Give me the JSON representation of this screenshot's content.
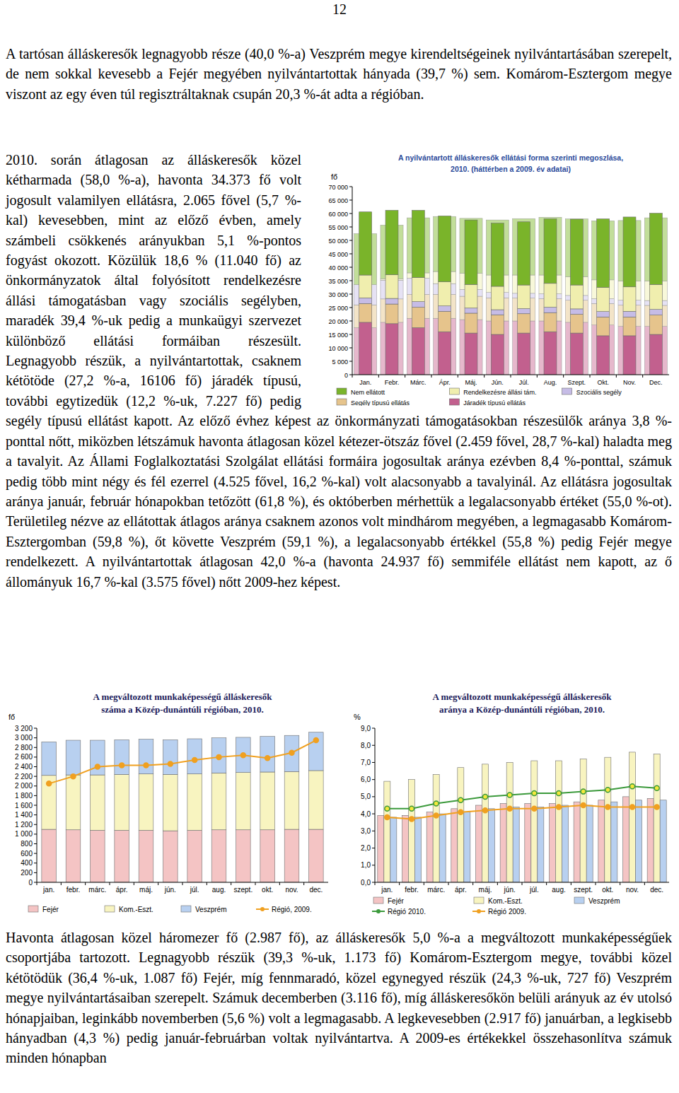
{
  "page_number": "12",
  "paragraphs": [
    "A tartósan álláskeresők legnagyobb része (40,0 %-a) Veszprém megye kirendeltségeinek nyilvántartásában szerepelt, de nem sokkal kevesebb a Fejér megyében nyilvántartottak hányada (39,7 %) sem. Komárom-Esztergom megye viszont az egy éven túl regisztráltaknak csupán 20,3 %-át adta a régióban.",
    "2010. során átlagosan az álláskeresők közel kétharmada (58,0 %-a), havonta 34.373 fő volt jogosult valamilyen ellátásra, 2.065 fővel (5,7 %-kal) kevesebben, mint az előző évben, amely számbeli csökkenés arányukban 5,1 %-pontos fogyást okozott. Közülük 18,6 % (11.040 fő) az önkormányzatok által folyósított rendelkezésre állási támogatásban vagy szociális segélyben, maradék 39,4 %-uk pedig a munkaügyi szervezet különböző ellátási formáiban részesült. Legnagyobb részük, a nyilvántartottak, csaknem kétötöde (27,2 %-a, 16106 fő) járadék típusú, további egytizedük (12,2 %-uk, 7.227 fő) pedig segély típusú ellátást kapott. Az előző évhez képest az önkormányzati támogatásokban részesülők aránya 3,8 %-ponttal nőtt, miközben létszámuk havonta átlagosan közel kétezer-ötszáz fővel (2.459 fővel, 28,7 %-kal) haladta meg a tavalyit. Az Állami Foglalkoztatási Szolgálat ellátási formáira jogosultak aránya ezévben 8,4 %-ponttal, számuk pedig több mint négy és fél ezerrel (4.525 fővel, 16,2 %-kal) volt alacsonyabb a tavalyinál. Az ellátásra jogosultak aránya január, február hónapokban tetőzött (61,8 %), és októberben mérhettük a legalacsonyabb értéket (55,0 %-ot). Területileg nézve az ellátottak átlagos aránya csaknem azonos volt mindhárom megyében, a legmagasabb Komárom-Esztergomban (59,8 %), őt követte Veszprém (59,1 %), a legalacsonyabb értékkel (55,8 %) pedig Fejér megye rendelkezett. A nyilvántartottak átlagosan 42,0 %-a (havonta 24.937 fő) semmiféle ellátást nem kapott, az ő állományuk 16,7 %-kal (3.575 fővel) nőtt 2009-hez képest.",
    "Havonta átlagosan közel háromezer fő (2.987 fő), az álláskeresők 5,0 %-a a megváltozott munkaképességűek csoportjába tartozott. Legnagyobb részük (39,3 %-uk, 1.173 fő) Komárom-Esztergom megye, további közel kétötödük (36,4 %-uk, 1.087 fő) Fejér, míg fennmaradó, közel egynegyed részük (24,3 %-uk, 727 fő) Veszprém megye nyilvántartásaiban szerepelt. Számuk decemberben (3.116 fő), míg álláskeresőkön belüli arányuk az év utolsó hónapjaiban, leginkább novemberben (5,6 %) volt a legmagasabb. A legkevesebben (2.917 fő) januárban, a legkisebb hányadban (4,3 %) pedig január-februárban voltak nyilvántartva. A 2009-es értékekkel összehasonlítva számuk minden hónapban"
  ],
  "chart_data": [
    {
      "type": "bar",
      "title": "A nyilvántartott álláskeresők ellátási forma szerinti megoszlása,",
      "subtitle": "2010. (háttérben a 2009. év adatai)",
      "ylabel": "fő",
      "categories": [
        "Jan.",
        "Febr.",
        "Márc.",
        "Ápr.",
        "Máj.",
        "Jún.",
        "Júl.",
        "Aug.",
        "Szept.",
        "Okt.",
        "Nov.",
        "Dec."
      ],
      "series": [
        {
          "name": "Járadék típusú ellátás",
          "color": "#c2608e",
          "values": [
            19500,
            19000,
            17500,
            16000,
            15500,
            15000,
            15500,
            16000,
            15500,
            14500,
            14500,
            15000
          ]
        },
        {
          "name": "Segély típusú ellátás",
          "color": "#e6c48c",
          "values": [
            7000,
            7300,
            7600,
            7600,
            7400,
            7300,
            7200,
            7100,
            7000,
            7000,
            7000,
            7200
          ]
        },
        {
          "name": "Szociális segély",
          "color": "#c6bce6",
          "values": [
            2100,
            2100,
            2100,
            2000,
            1900,
            1900,
            1900,
            2000,
            2000,
            2000,
            2100,
            2100
          ]
        },
        {
          "name": "Rendelkezésre állási tám.",
          "color": "#f0eeae",
          "values": [
            8500,
            8800,
            9000,
            9000,
            8800,
            8700,
            8800,
            8900,
            8900,
            9000,
            9100,
            9300
          ]
        },
        {
          "name": "Nem ellátott",
          "color": "#7ab42a",
          "values": [
            23500,
            24000,
            25000,
            24500,
            24000,
            23500,
            23500,
            24000,
            24500,
            25500,
            26000,
            26500
          ]
        }
      ],
      "background_series": [
        {
          "color": "#e6b8cc",
          "values": [
            17500,
            19500,
            21000,
            21000,
            20500,
            20000,
            20000,
            20000,
            19500,
            18500,
            18000,
            18000
          ]
        },
        {
          "color": "#f3e4c8",
          "values": [
            8500,
            8700,
            8900,
            8900,
            8700,
            8600,
            8500,
            8300,
            8200,
            8000,
            7900,
            7800
          ]
        },
        {
          "color": "#e6e2f4",
          "values": [
            7500,
            7000,
            6000,
            4000,
            2500,
            2000,
            1800,
            1800,
            1800,
            1800,
            1800,
            1800
          ]
        },
        {
          "color": "#f8f8da",
          "values": [
            0,
            500,
            2000,
            4500,
            6000,
            6500,
            6800,
            7000,
            7000,
            7000,
            7200,
            7300
          ]
        },
        {
          "color": "#c2de9a",
          "values": [
            19000,
            20000,
            20500,
            20500,
            20500,
            20500,
            21000,
            21500,
            21500,
            22000,
            22500,
            23500
          ]
        }
      ],
      "stacked": true,
      "grid": false,
      "legend": "bottom",
      "ylim": [
        0,
        70000
      ],
      "yticks": [
        0,
        {
          "value": 5000,
          "label": "5 000"
        },
        {
          "value": 10000,
          "label": "10 000"
        },
        {
          "value": 15000,
          "label": "15 000"
        },
        {
          "value": 20000,
          "label": "20 000"
        },
        {
          "value": 25000,
          "label": "25 000"
        },
        {
          "value": 30000,
          "label": "30 000"
        },
        {
          "value": 35000,
          "label": "35 000"
        },
        {
          "value": 40000,
          "label": "40 000"
        },
        {
          "value": 45000,
          "label": "45 000"
        },
        {
          "value": 50000,
          "label": "50 000"
        },
        {
          "value": 55000,
          "label": "55 000"
        },
        {
          "value": 60000,
          "label": "60 000"
        },
        {
          "value": 65000,
          "label": "65 000"
        },
        {
          "value": 70000,
          "label": "70 000"
        }
      ]
    },
    {
      "type": "bar",
      "title": "A megváltozott munkaképességű álláskeresők",
      "subtitle": "száma a Közép-dunántúli régióban, 2010.",
      "ylabel": "fő",
      "categories": [
        "jan.",
        "febr.",
        "márc.",
        "ápr.",
        "máj.",
        "jún.",
        "júl.",
        "aug.",
        "szept.",
        "okt.",
        "nov.",
        "dec."
      ],
      "series": [
        {
          "name": "Fejér",
          "color": "#f4c4c4",
          "values": [
            1100,
            1090,
            1080,
            1080,
            1080,
            1070,
            1080,
            1090,
            1090,
            1090,
            1100,
            1100
          ]
        },
        {
          "name": "Kom.-Eszt.",
          "color": "#f8f4c0",
          "values": [
            1120,
            1140,
            1150,
            1160,
            1170,
            1170,
            1170,
            1180,
            1190,
            1200,
            1200,
            1220
          ]
        },
        {
          "name": "Veszprém",
          "color": "#b8d0f0",
          "values": [
            697,
            720,
            720,
            720,
            720,
            720,
            730,
            730,
            730,
            740,
            750,
            796
          ]
        },
        {
          "name": "Régió, 2009.",
          "color": "#f0a020",
          "type": "line",
          "marker": "circle",
          "values": [
            2050,
            2200,
            2400,
            2430,
            2430,
            2460,
            2540,
            2600,
            2640,
            2580,
            2690,
            2950
          ]
        }
      ],
      "stacked": true,
      "grid": false,
      "legend": "bottom",
      "ylim": [
        0,
        3200
      ],
      "yticks": [
        0,
        200,
        400,
        600,
        800,
        {
          "value": 1000,
          "label": "1 000"
        },
        {
          "value": 1200,
          "label": "1 200"
        },
        {
          "value": 1400,
          "label": "1 400"
        },
        {
          "value": 1600,
          "label": "1 600"
        },
        {
          "value": 1800,
          "label": "1 800"
        },
        {
          "value": 2000,
          "label": "2 000"
        },
        {
          "value": 2200,
          "label": "2 200"
        },
        {
          "value": 2400,
          "label": "2 400"
        },
        {
          "value": 2600,
          "label": "2 600"
        },
        {
          "value": 2800,
          "label": "2 800"
        },
        {
          "value": 3000,
          "label": "3 000"
        },
        {
          "value": 3200,
          "label": "3 200"
        }
      ]
    },
    {
      "type": "bar",
      "title": "A megváltozott munkaképességű álláskeresők",
      "subtitle": "aránya a Közép-dunántúli régióban, 2010.",
      "ylabel": "%",
      "categories": [
        "jan.",
        "febr.",
        "márc.",
        "ápr.",
        "máj.",
        "jún.",
        "júl.",
        "aug.",
        "szept.",
        "okt.",
        "nov.",
        "dec."
      ],
      "series": [
        {
          "name": "Fejér",
          "color": "#f4c4c4",
          "values": [
            3.9,
            3.9,
            4.1,
            4.3,
            4.5,
            4.6,
            4.6,
            4.6,
            4.7,
            4.8,
            5.0,
            4.9
          ]
        },
        {
          "name": "Kom.-Eszt.",
          "color": "#f8f4c0",
          "values": [
            5.9,
            6.0,
            6.3,
            6.7,
            6.9,
            7.0,
            7.1,
            7.1,
            7.2,
            7.3,
            7.6,
            7.5
          ]
        },
        {
          "name": "Veszprém",
          "color": "#b8d0f0",
          "values": [
            3.8,
            3.8,
            4.0,
            4.1,
            4.3,
            4.4,
            4.4,
            4.5,
            4.5,
            4.7,
            4.8,
            4.8
          ]
        },
        {
          "name": "Régió 2010.",
          "color": "#3c9a3c",
          "type": "line",
          "marker": "circle",
          "values": [
            4.3,
            4.3,
            4.6,
            4.8,
            5.0,
            5.1,
            5.2,
            5.2,
            5.3,
            5.4,
            5.6,
            5.5
          ]
        },
        {
          "name": "Régió 2009.",
          "color": "#f0a020",
          "type": "line",
          "marker": "circle",
          "values": [
            3.8,
            3.7,
            3.9,
            4.1,
            4.2,
            4.3,
            4.3,
            4.4,
            4.5,
            4.4,
            4.4,
            4.4
          ]
        }
      ],
      "stacked": false,
      "grid": false,
      "legend": "bottom",
      "ylim": [
        0,
        9
      ],
      "yticks": [
        {
          "value": 0,
          "label": "0,0"
        },
        {
          "value": 1,
          "label": "1,0"
        },
        {
          "value": 2,
          "label": "2,0"
        },
        {
          "value": 3,
          "label": "3,0"
        },
        {
          "value": 4,
          "label": "4,0"
        },
        {
          "value": 5,
          "label": "5,0"
        },
        {
          "value": 6,
          "label": "6,0"
        },
        {
          "value": 7,
          "label": "7,0"
        },
        {
          "value": 8,
          "label": "8,0"
        },
        {
          "value": 9,
          "label": "9,0"
        }
      ]
    }
  ]
}
